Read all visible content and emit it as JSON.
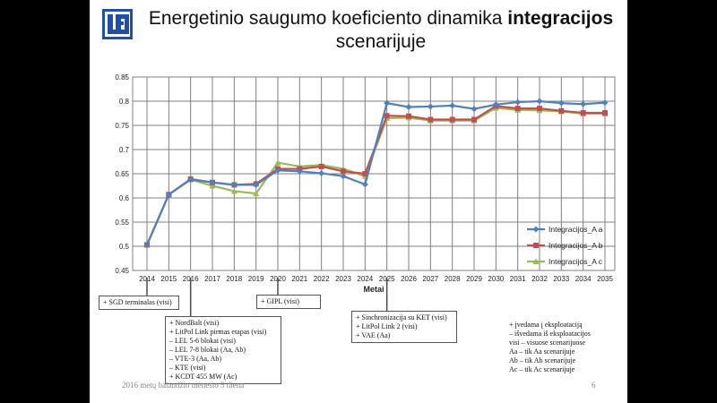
{
  "slide": {
    "title_part1": "Energetinio saugumo koeficiento dinamika ",
    "title_bold": "integracijos",
    "title_part2": "scenarijuje",
    "footer": "2016 metų balandžio mėnesio 5 diena",
    "page_number": "6",
    "logo_text": "LEI"
  },
  "colors": {
    "series_a": "#4f81bd",
    "series_b": "#c0504d",
    "series_c": "#9bbb59",
    "grid": "#7f7f7f",
    "connector": "#4a4a4a"
  },
  "chart_data": {
    "type": "line",
    "title": "",
    "xlabel": "Metai",
    "ylabel": "",
    "ylim": [
      0.45,
      0.85
    ],
    "yticks": [
      "0.45",
      "0.5",
      "0.55",
      "0.6",
      "0.65",
      "0.7",
      "0.75",
      "0.8",
      "0.85"
    ],
    "grid": true,
    "legend_position": "right",
    "x": [
      "2014",
      "2015",
      "2016",
      "2017",
      "2018",
      "2019",
      "2020",
      "2021",
      "2022",
      "2023",
      "2024",
      "2025",
      "2026",
      "2027",
      "2028",
      "2029",
      "2030",
      "2031",
      "2032",
      "2033",
      "2034",
      "2035"
    ],
    "series": [
      {
        "name": "Integracijos_A a",
        "marker": "diamond",
        "values": [
          0.503,
          0.607,
          0.638,
          0.632,
          0.627,
          0.627,
          0.657,
          0.655,
          0.651,
          0.645,
          0.628,
          0.796,
          0.788,
          0.789,
          0.791,
          0.784,
          0.793,
          0.798,
          0.8,
          0.796,
          0.794,
          0.797
        ]
      },
      {
        "name": "Integracijos_A b",
        "marker": "square",
        "values": [
          0.503,
          0.607,
          0.639,
          0.632,
          0.627,
          0.629,
          0.66,
          0.66,
          0.665,
          0.655,
          0.65,
          0.77,
          0.769,
          0.762,
          0.762,
          0.762,
          0.79,
          0.785,
          0.785,
          0.78,
          0.776,
          0.776
        ]
      },
      {
        "name": "Integracijos_A c",
        "marker": "triangle",
        "values": [
          0.503,
          0.607,
          0.638,
          0.625,
          0.614,
          0.609,
          0.673,
          0.665,
          0.668,
          0.66,
          0.645,
          0.765,
          0.766,
          0.76,
          0.76,
          0.76,
          0.786,
          0.782,
          0.781,
          0.779,
          0.774,
          0.774
        ]
      }
    ]
  },
  "annotations": {
    "box_2014": [
      "+ SGD terminalas (visi)"
    ],
    "box_2016": [
      "+ NordBalt (visi)",
      "+ LitPol Link pirmas etapas (visi)",
      "– LEL 5-6 blokai (visi)",
      "– LEL 7-8 blokai (Aa, Ab)",
      "– VTE-3 (Aa, Ab)",
      "– KTE (visi)",
      "+ KCDT 455 MW (Ac)"
    ],
    "box_2020": [
      "+ GIPL (visi)"
    ],
    "box_2025": [
      "+ Sinchronizacija su KET (visi)",
      "+ LitPol Link 2 (visi)",
      "+ VAE (Aa)"
    ],
    "notes": [
      "+ įvedama į eksploataciją",
      "– išvedama iš eksploatacijos",
      "visi – visuose scenarijuose",
      "Aa – tik Aa scenarijuje",
      "Ab – tik Ab scenarijuje",
      "Ac – tik Ac scenarijuje"
    ]
  }
}
